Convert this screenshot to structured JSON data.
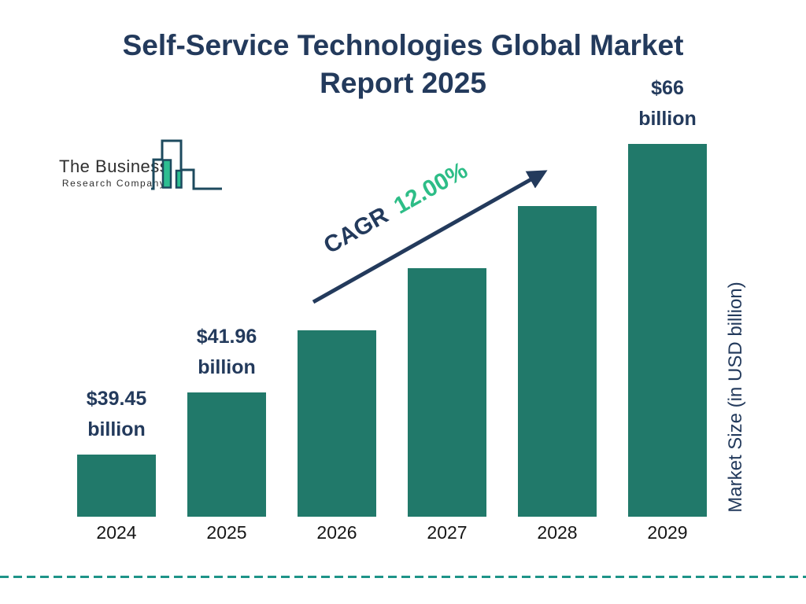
{
  "chart_data": {
    "type": "bar",
    "title": "Self-Service Technologies Global Market Report 2025",
    "categories": [
      "2024",
      "2025",
      "2026",
      "2027",
      "2028",
      "2029"
    ],
    "values": [
      39.45,
      41.96,
      null,
      null,
      null,
      66
    ],
    "value_labels": [
      "$39.45 billion",
      "$41.96 billion",
      "",
      "",
      "",
      "$66 billion"
    ],
    "xlabel": "",
    "ylabel": "Market Size (in USD billion)",
    "units": "USD billion",
    "annotation": {
      "label": "CAGR",
      "value": "12.00%"
    },
    "legend": "none",
    "grid": false,
    "bar_color": "#21796a",
    "note": "Bars for 2026-2028 are unlabeled; bar heights are drawn as equal visual steps."
  },
  "logo": {
    "name": "The Business",
    "subtitle": "Research Company"
  },
  "colors": {
    "title_navy": "#233a5c",
    "accent_green": "#2dbd87",
    "bar_teal": "#21796a",
    "dashed_divider_teal": "#1e9488",
    "logo_outline": "#1d4a5e",
    "logo_fill_green": "#2dbe91",
    "year_text": "#161616",
    "background": "#ffffff"
  }
}
